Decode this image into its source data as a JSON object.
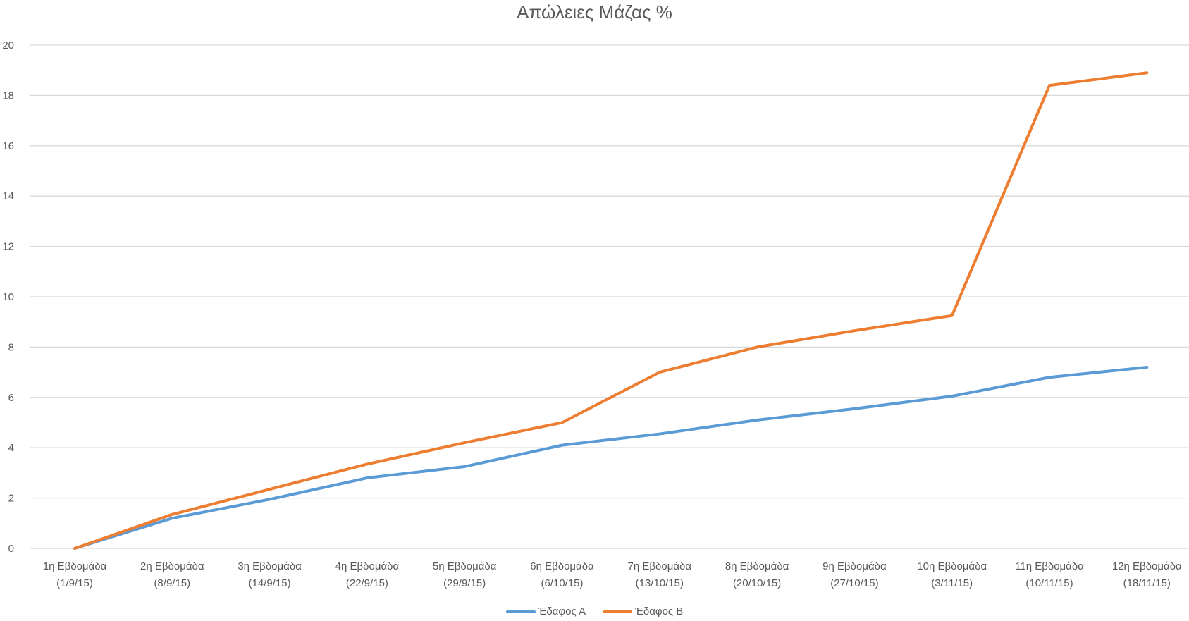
{
  "chart_data": {
    "type": "line",
    "title": "Απώλειες Μάζας %",
    "categories": [
      [
        "1η Εβδομάδα",
        "(1/9/15)"
      ],
      [
        "2η Εβδομάδα",
        "(8/9/15)"
      ],
      [
        "3η Εβδομάδα",
        "(14/9/15)"
      ],
      [
        "4η Εβδομάδα",
        "(22/9/15)"
      ],
      [
        "5η Εβδομάδα",
        "(29/9/15)"
      ],
      [
        "6η Εβδομάδα",
        "(6/10/15)"
      ],
      [
        "7η Εβδομάδα",
        "(13/10/15)"
      ],
      [
        "8η Εβδομάδα",
        "(20/10/15)"
      ],
      [
        "9η Εβδομάδα",
        "(27/10/15)"
      ],
      [
        "10η Εβδομάδα",
        "(3/11/15)"
      ],
      [
        "11η Εβδομάδα",
        "(10/11/15)"
      ],
      [
        "12η Εβδομάδα",
        "(18/11/15)"
      ]
    ],
    "series": [
      {
        "name": "Έδαφος Α",
        "color": "#5B9BD5",
        "values": [
          0,
          1.2,
          1.95,
          2.8,
          3.25,
          4.1,
          4.55,
          5.1,
          5.55,
          6.05,
          6.8,
          7.2
        ]
      },
      {
        "name": "Έδαφος Β",
        "color": "#ED7D31",
        "values": [
          0,
          1.35,
          2.35,
          3.35,
          4.2,
          5.0,
          7.0,
          8.0,
          8.65,
          9.25,
          18.4,
          18.9
        ]
      }
    ],
    "ylim": [
      0,
      20
    ],
    "yticks": [
      "0",
      "2",
      "4",
      "6",
      "8",
      "10",
      "12",
      "14",
      "16",
      "18",
      "20"
    ],
    "grid": true,
    "legend_position": "bottom"
  }
}
